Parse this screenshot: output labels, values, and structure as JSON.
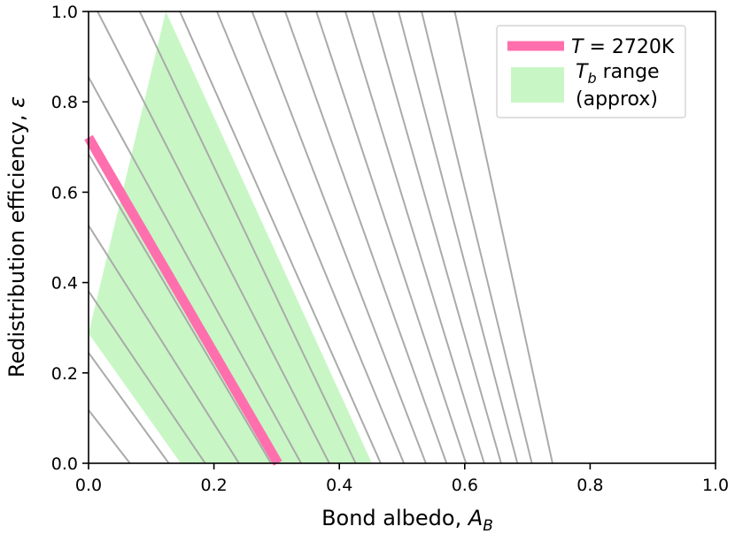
{
  "chart_data": {
    "type": "line",
    "xlabel": "Bond albedo, ",
    "xlabel_sub_var": "A",
    "xlabel_sub": "B",
    "ylabel": "Redistribution efficiency, ",
    "ylabel_symbol": "ε",
    "xlim": [
      0.0,
      1.0
    ],
    "ylim": [
      0.0,
      1.0
    ],
    "x_ticks": [
      "0.0",
      "0.2",
      "0.4",
      "0.6",
      "0.8",
      "1.0"
    ],
    "y_ticks": [
      "0.0",
      "0.2",
      "0.4",
      "0.6",
      "0.8",
      "1.0"
    ],
    "grid": false,
    "legend_position": "top-right",
    "contour_color": "#aaaaaa",
    "contour_x_intercepts": [
      0.066,
      0.128,
      0.186,
      0.24,
      0.291,
      0.339,
      0.384,
      0.426,
      0.466,
      0.503,
      0.538,
      0.571,
      0.602,
      0.631,
      0.658,
      0.684,
      0.707,
      0.74
    ],
    "highlight": {
      "legend_var": "T",
      "legend_value": " = 2720K",
      "color": "#ff6fae",
      "x_intercept": 0.302
    },
    "band": {
      "legend_var": "T",
      "legend_sub": "b",
      "legend_line1_rest": " range",
      "legend_line2": "(approx)",
      "color": "#c8f7c5",
      "lower_x_intercept": 0.147,
      "upper_x_intercept": 0.452
    }
  }
}
